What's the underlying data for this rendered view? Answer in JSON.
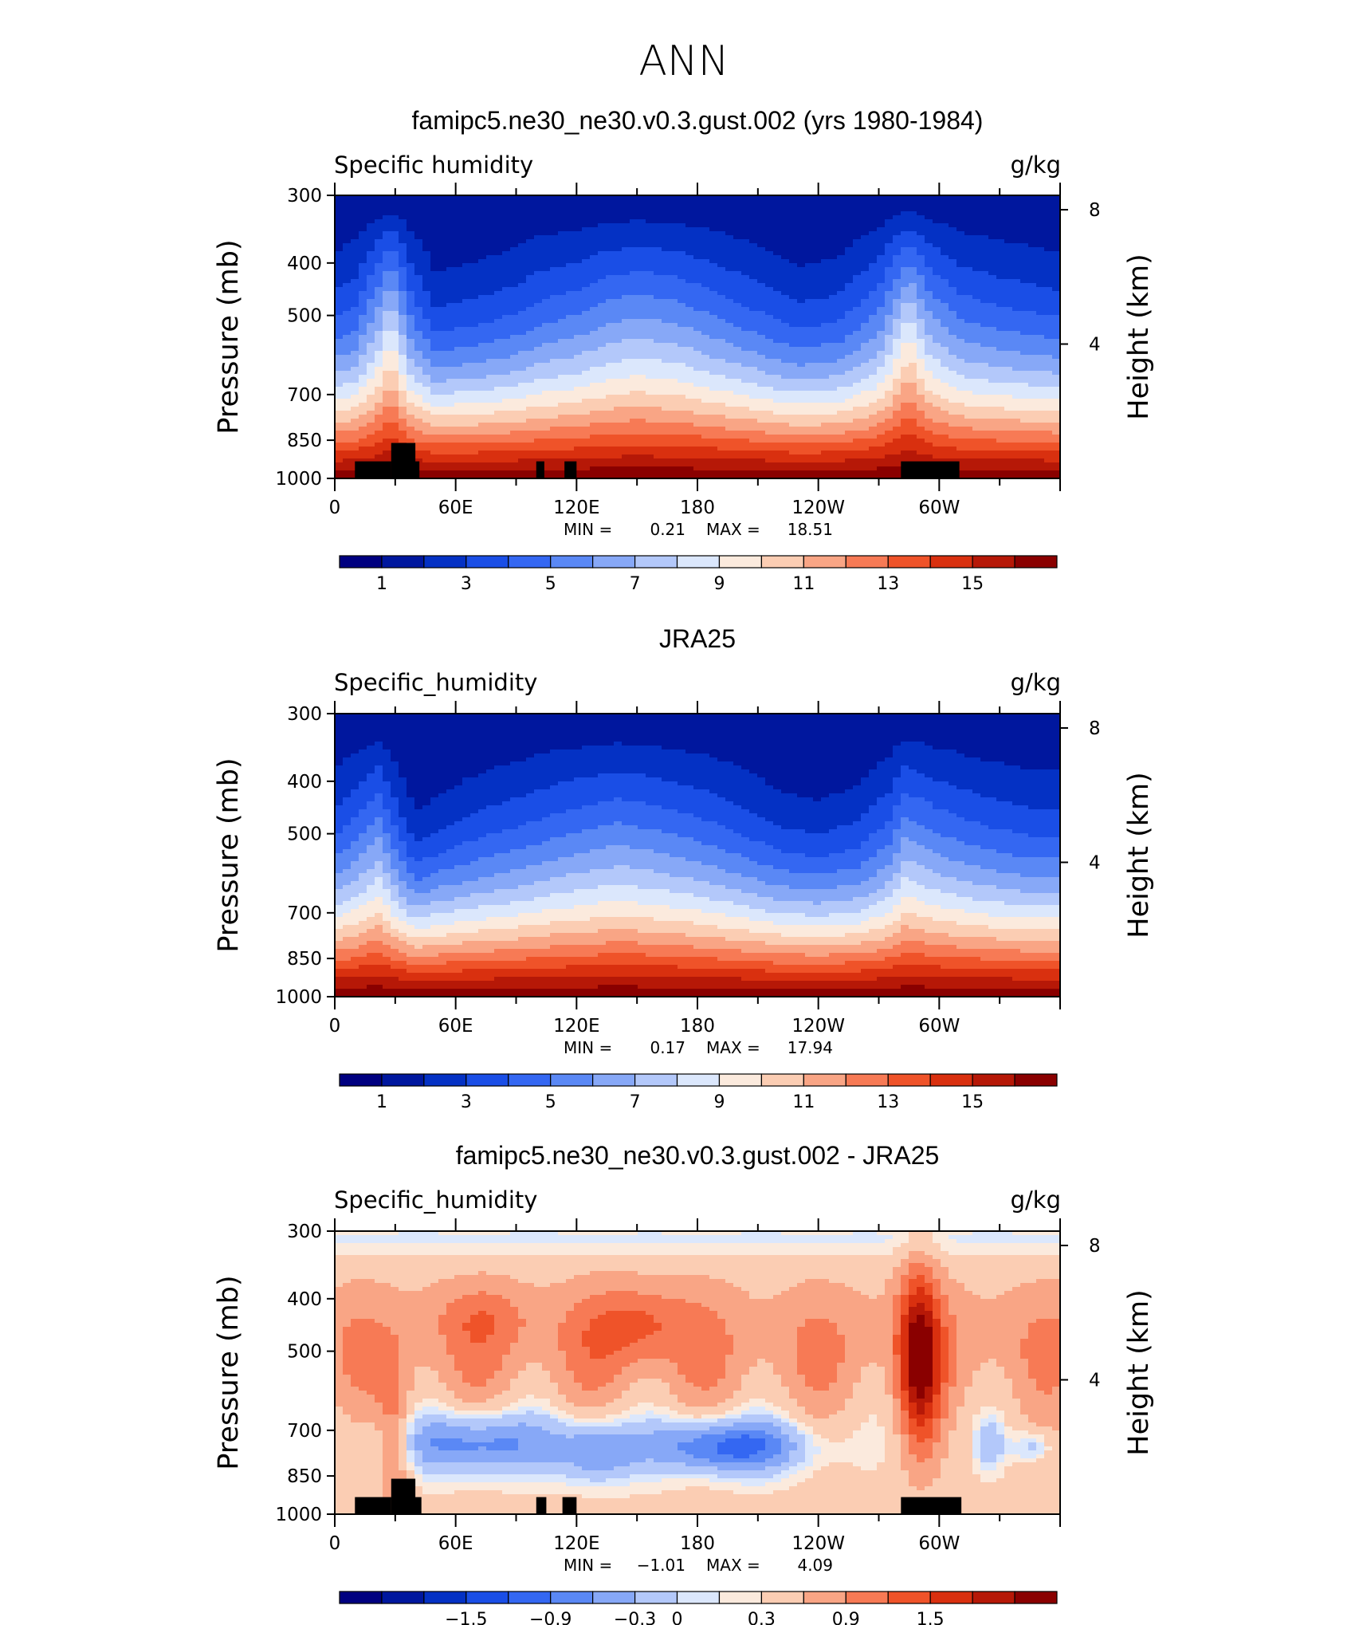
{
  "main_title": "ANN",
  "chart_data": [
    {
      "type": "contour",
      "id": "panel1",
      "title": "famipc5.ne30_ne30.v0.3.gust.002 (yrs 1980-1984)",
      "left_label": "Specific humidity",
      "right_label": "g/kg",
      "ylabel": "Pressure (mb)",
      "ylabel_right": "Height (km)",
      "y_ticks": [
        "300",
        "400",
        "500",
        "700",
        "850",
        "1000"
      ],
      "y_tick_values": [
        300,
        400,
        500,
        700,
        850,
        1000
      ],
      "y_right_ticks": [
        "8",
        "4"
      ],
      "y_right_tick_values": [
        8,
        4
      ],
      "x_ticks": [
        "0",
        "60E",
        "120E",
        "180",
        "120W",
        "60W"
      ],
      "x_tick_values": [
        0,
        60,
        120,
        180,
        240,
        300
      ],
      "xlim": [
        0,
        360
      ],
      "ylim": [
        300,
        1000
      ],
      "min_label": "MIN =",
      "min_value": "0.21",
      "max_label": "MAX =",
      "max_value": "18.51",
      "levels": [
        0,
        1,
        2,
        3,
        4,
        5,
        6,
        7,
        8,
        9,
        10,
        11,
        12,
        13,
        14,
        15,
        16
      ],
      "colorbar_labels": [
        "1",
        "3",
        "5",
        "7",
        "9",
        "11",
        "13",
        "15"
      ],
      "colorbar_label_index": [
        1,
        3,
        5,
        7,
        9,
        11,
        13,
        15
      ],
      "profile_lon": [
        0,
        10,
        22,
        28,
        38,
        50,
        70,
        90,
        100,
        112,
        120,
        135,
        150,
        170,
        200,
        230,
        250,
        270,
        280,
        285,
        295,
        310,
        330,
        350,
        360
      ],
      "profile_shift": [
        0.0,
        0.3,
        1.6,
        2.4,
        0.6,
        -0.4,
        -0.2,
        0.1,
        0.4,
        0.6,
        0.7,
        1.1,
        1.3,
        1.1,
        0.4,
        -0.3,
        -0.1,
        0.8,
        2.0,
        2.6,
        1.4,
        0.6,
        0.3,
        0.1,
        0.0
      ],
      "topography": [
        [
          10,
          28,
          930
        ],
        [
          28,
          40,
          860
        ],
        [
          28,
          42,
          930
        ],
        [
          100,
          104,
          930
        ],
        [
          114,
          120,
          930
        ],
        [
          281,
          310,
          930
        ]
      ]
    },
    {
      "type": "contour",
      "id": "panel2",
      "title": "JRA25",
      "left_label": "Specific_humidity",
      "right_label": "g/kg",
      "ylabel": "Pressure (mb)",
      "ylabel_right": "Height (km)",
      "y_ticks": [
        "300",
        "400",
        "500",
        "700",
        "850",
        "1000"
      ],
      "y_tick_values": [
        300,
        400,
        500,
        700,
        850,
        1000
      ],
      "y_right_ticks": [
        "8",
        "4"
      ],
      "y_right_tick_values": [
        8,
        4
      ],
      "x_ticks": [
        "0",
        "60E",
        "120E",
        "180",
        "120W",
        "60W"
      ],
      "x_tick_values": [
        0,
        60,
        120,
        180,
        240,
        300
      ],
      "xlim": [
        0,
        360
      ],
      "ylim": [
        300,
        1000
      ],
      "min_label": "MIN =",
      "min_value": "0.17",
      "max_label": "MAX =",
      "max_value": "17.94",
      "levels": [
        0,
        1,
        2,
        3,
        4,
        5,
        6,
        7,
        8,
        9,
        10,
        11,
        12,
        13,
        14,
        15,
        16
      ],
      "colorbar_labels": [
        "1",
        "3",
        "5",
        "7",
        "9",
        "11",
        "13",
        "15"
      ],
      "colorbar_label_index": [
        1,
        3,
        5,
        7,
        9,
        11,
        13,
        15
      ],
      "profile_lon": [
        0,
        10,
        22,
        30,
        40,
        55,
        75,
        95,
        110,
        125,
        140,
        160,
        180,
        200,
        220,
        240,
        260,
        275,
        283,
        290,
        300,
        320,
        345,
        360
      ],
      "profile_shift": [
        0.0,
        0.5,
        1.2,
        0.2,
        -0.8,
        -0.4,
        0.0,
        0.3,
        0.6,
        0.8,
        1.0,
        0.8,
        0.5,
        0.1,
        -0.4,
        -0.6,
        -0.3,
        0.4,
        1.2,
        1.0,
        0.7,
        0.3,
        0.0,
        0.0
      ],
      "topography": []
    },
    {
      "type": "contour",
      "id": "panel3",
      "title": "famipc5.ne30_ne30.v0.3.gust.002 - JRA25",
      "left_label": "Specific_humidity",
      "right_label": "g/kg",
      "ylabel": "Pressure (mb)",
      "ylabel_right": "Height (km)",
      "y_ticks": [
        "300",
        "400",
        "500",
        "700",
        "850",
        "1000"
      ],
      "y_tick_values": [
        300,
        400,
        500,
        700,
        850,
        1000
      ],
      "y_right_ticks": [
        "8",
        "4"
      ],
      "y_right_tick_values": [
        8,
        4
      ],
      "x_ticks": [
        "0",
        "60E",
        "120E",
        "180",
        "120W",
        "60W"
      ],
      "x_tick_values": [
        0,
        60,
        120,
        180,
        240,
        300
      ],
      "xlim": [
        0,
        360
      ],
      "ylim": [
        300,
        1000
      ],
      "min_label": "MIN =",
      "min_value": "−1.01",
      "max_label": "MAX =",
      "max_value": "4.09",
      "levels": [
        -2.4,
        -2.1,
        -1.8,
        -1.5,
        -1.2,
        -0.9,
        -0.6,
        -0.3,
        0,
        0.15,
        0.3,
        0.6,
        0.9,
        1.2,
        1.5,
        1.8,
        2.1
      ],
      "colorbar_labels": [
        "−1.5",
        "−0.9",
        "−0.3",
        "0",
        "0.3",
        "0.9",
        "1.5"
      ],
      "colorbar_label_index": [
        3,
        5,
        7,
        8,
        10,
        12,
        14
      ],
      "topography": [
        [
          10,
          28,
          930
        ],
        [
          28,
          40,
          860
        ],
        [
          28,
          43,
          930
        ],
        [
          100,
          105,
          930
        ],
        [
          113,
          120,
          930
        ],
        [
          281,
          311,
          930
        ]
      ]
    }
  ],
  "colors": {
    "palette": [
      "#000080",
      "#00179e",
      "#0431c4",
      "#1a4ee6",
      "#3467f2",
      "#5a88f5",
      "#87a8f7",
      "#b3c8fa",
      "#dbe7fc",
      "#fbeadd",
      "#fbcdb3",
      "#f9a585",
      "#f77a55",
      "#ef5329",
      "#d9300f",
      "#b61807",
      "#8a0000"
    ],
    "topography": "#000000"
  }
}
